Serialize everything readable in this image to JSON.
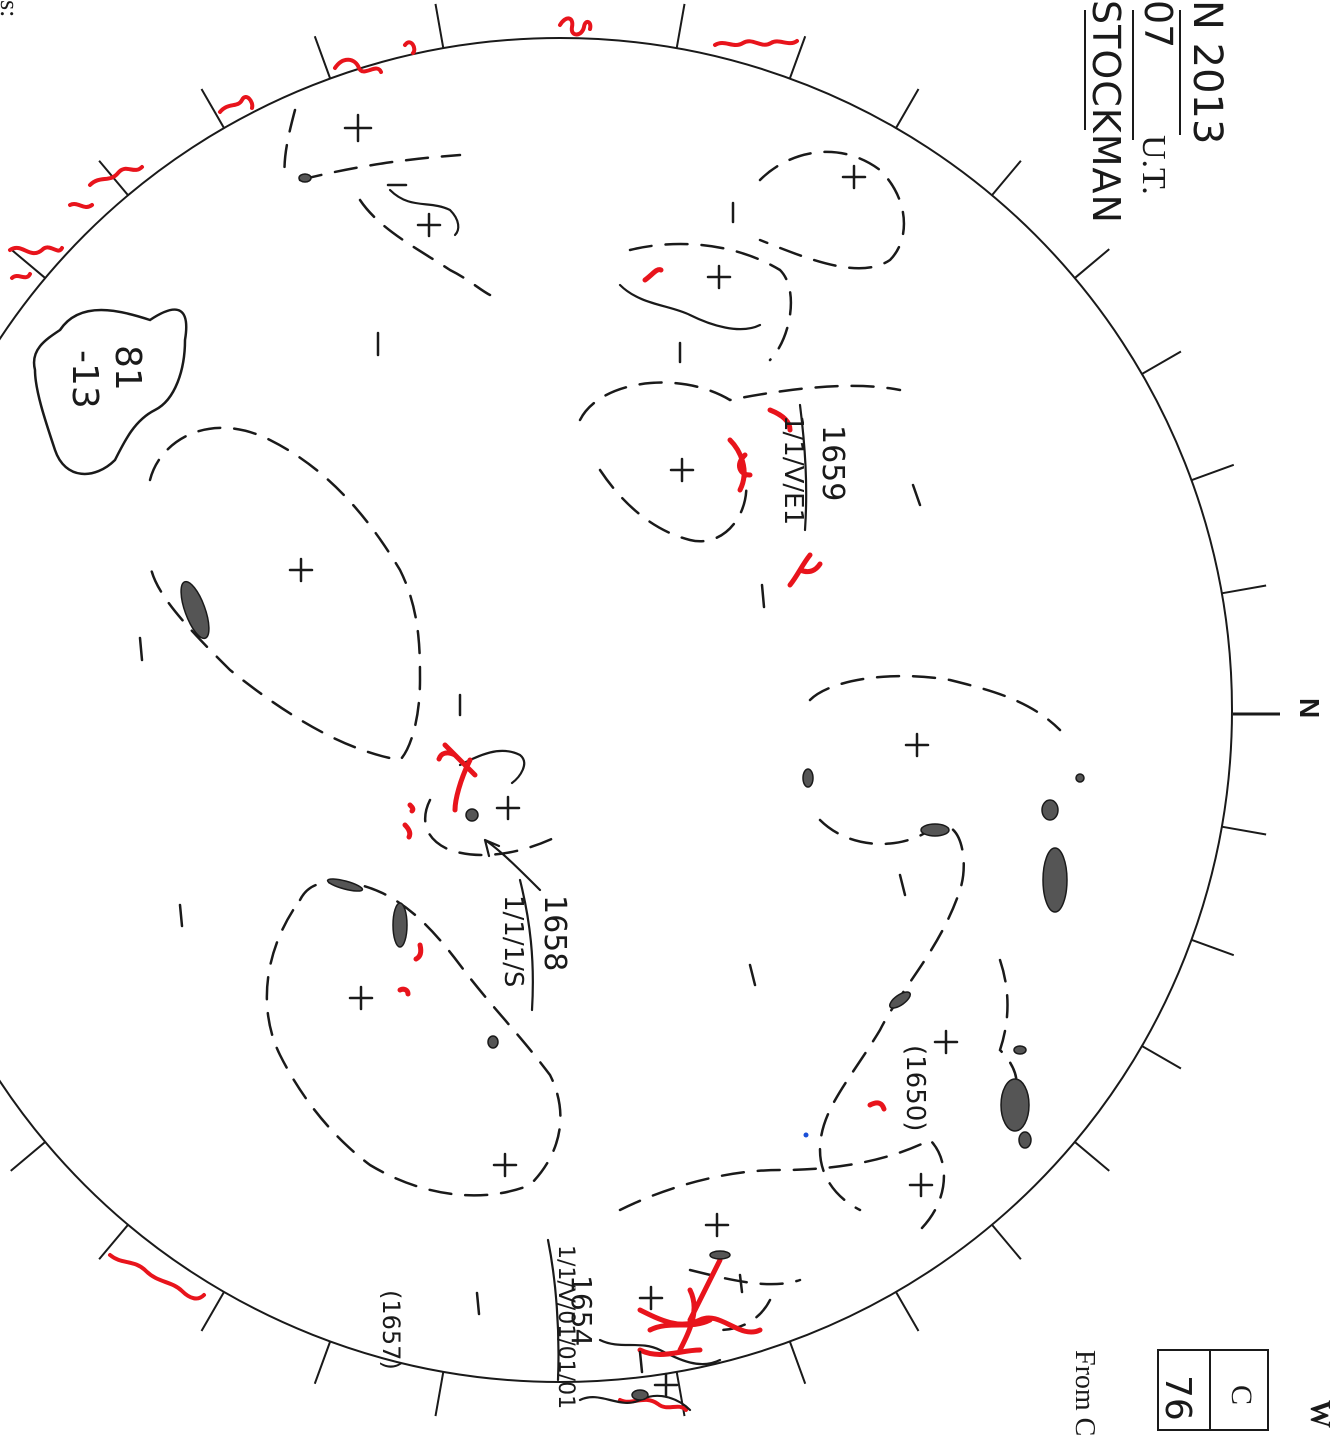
{
  "header": {
    "date_fragment": "N 2013",
    "time_fragment": "07",
    "time_unit": "U.T.",
    "observer": "STOCKMAN",
    "left_edge_label": "s:"
  },
  "compass": {
    "north": "N"
  },
  "region_labels": {
    "r1659": "1659",
    "r1659_class": "1/1/V/E1",
    "r1658": "1658",
    "r1658_class": "1/1/1/S",
    "r1654": "1654",
    "r1654_class": "1/1/V/01/01/01",
    "r1650": "(1650)",
    "r1657": "(1657)"
  },
  "filament_label": {
    "top": "81",
    "bottom": "-13"
  },
  "side_table": {
    "header_cell": "C",
    "value_cell": "76",
    "from_text": "From C",
    "right_top_fragment": "W"
  },
  "colors": {
    "ink": "#1a1a1a",
    "plage_red": "#e8141c",
    "spot_gray": "#555555",
    "stray_blue": "#1a4fd8"
  },
  "icons": {
    "disk": "solar-disk-circle",
    "polarity_plus": "plus-sign",
    "polarity_minus": "minus-sign"
  }
}
